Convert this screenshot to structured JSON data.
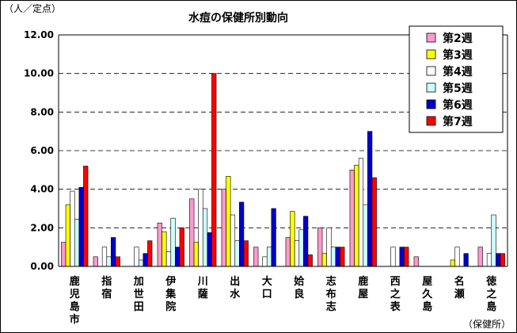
{
  "chart_data": {
    "type": "bar",
    "title": "水痘の保健所別動向",
    "ylabel": "（人／定点）",
    "xlabel": "（保健所）",
    "ylim": [
      0,
      12
    ],
    "yticks": [
      "0.00",
      "2.00",
      "4.00",
      "6.00",
      "8.00",
      "10.00",
      "12.00"
    ],
    "grid": true,
    "legend_position": "top-right",
    "categories": [
      "鹿児島市",
      "指宿",
      "加世田",
      "伊集院",
      "川薩",
      "出水",
      "大口",
      "姶良",
      "志布志",
      "鹿屋",
      "西之表",
      "屋久島",
      "名瀬",
      "徳之島"
    ],
    "series": [
      {
        "name": "第2週",
        "color": "#ff99cc",
        "values": [
          1.25,
          0.5,
          0,
          2.25,
          3.5,
          4.0,
          1.0,
          1.5,
          2.0,
          5.0,
          0,
          0.5,
          0,
          1.0
        ]
      },
      {
        "name": "第3週",
        "color": "#ffff00",
        "values": [
          3.2,
          0,
          0,
          1.8,
          1.25,
          4.67,
          0,
          2.85,
          0.67,
          5.25,
          0,
          0,
          0.33,
          0
        ]
      },
      {
        "name": "第4週",
        "color": "#ffffff",
        "values": [
          3.9,
          1.0,
          1.0,
          0.75,
          4.0,
          2.67,
          0.5,
          1.33,
          2.0,
          5.6,
          1.0,
          0,
          1.0,
          0.67
        ]
      },
      {
        "name": "第5週",
        "color": "#ccffff",
        "values": [
          2.45,
          0.5,
          0.33,
          2.5,
          3.0,
          1.33,
          1.0,
          1.9,
          1.0,
          3.2,
          0,
          0,
          0,
          2.67
        ]
      },
      {
        "name": "第6週",
        "color": "#0000cc",
        "values": [
          4.1,
          1.5,
          0.67,
          1.0,
          1.75,
          3.33,
          3.0,
          2.6,
          1.0,
          7.0,
          1.0,
          0,
          0.67,
          0.67
        ]
      },
      {
        "name": "第7週",
        "color": "#ff0000",
        "values": [
          5.2,
          0.5,
          1.33,
          2.0,
          10.0,
          1.33,
          0,
          0.6,
          1.0,
          4.6,
          1.0,
          0,
          0,
          0.67
        ]
      }
    ]
  }
}
